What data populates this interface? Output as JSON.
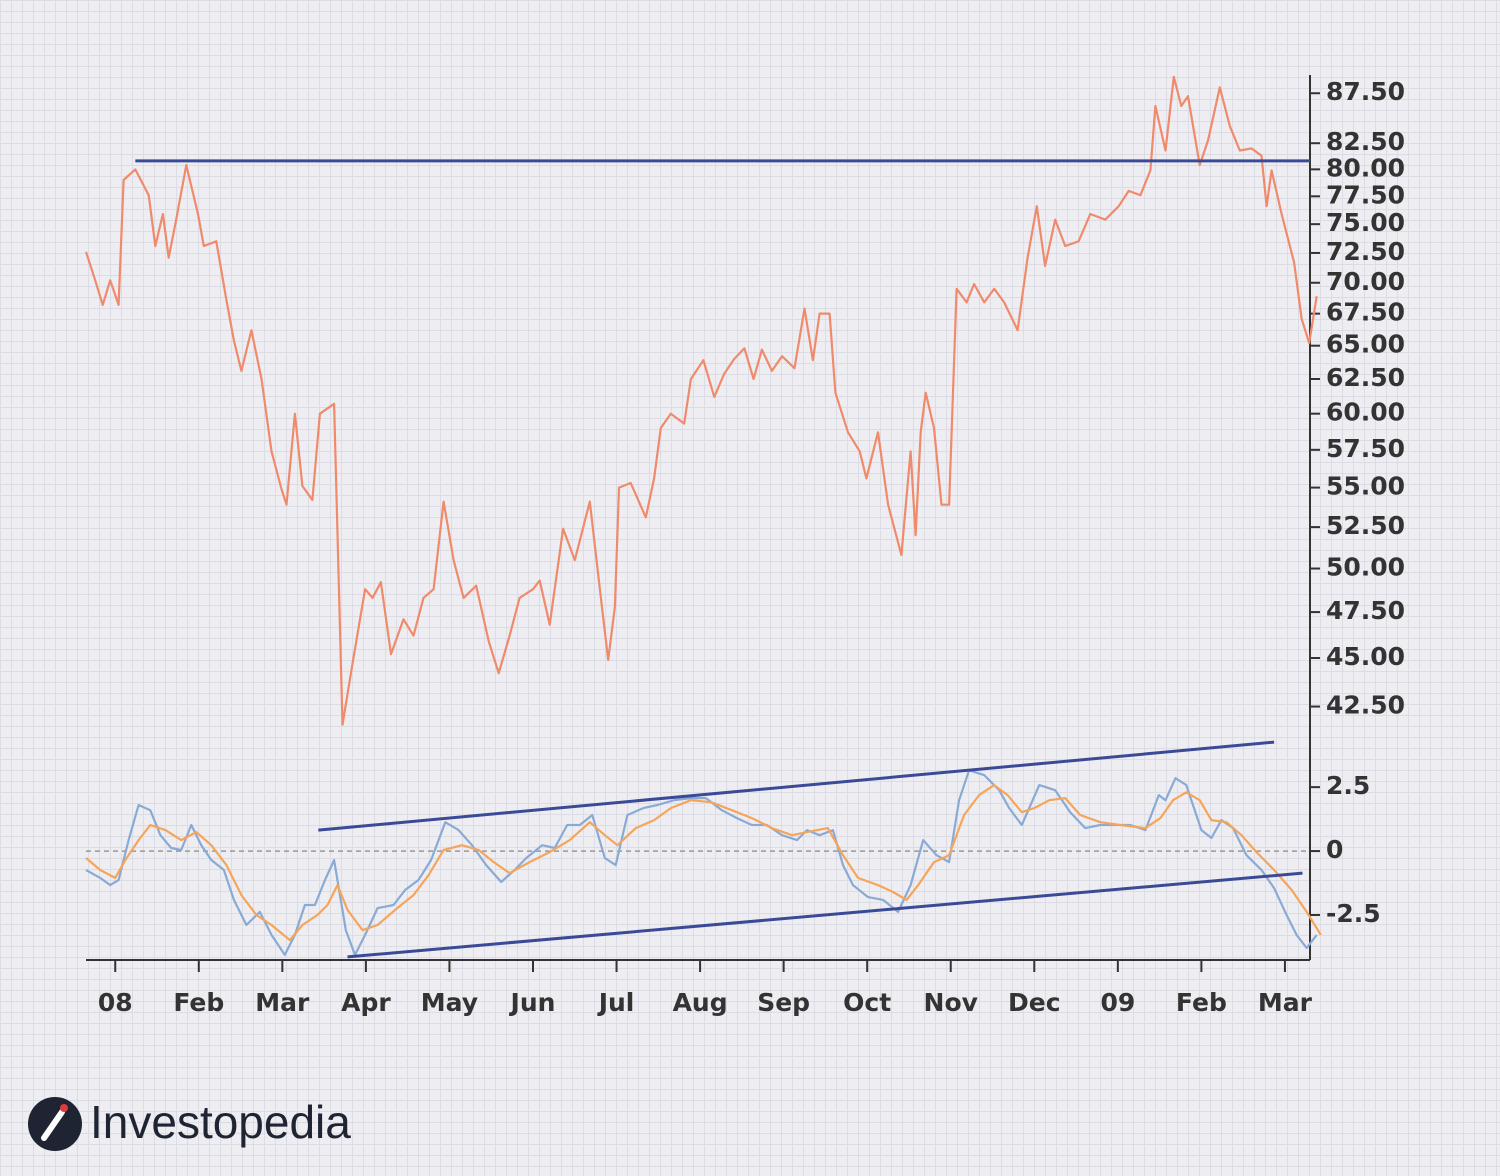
{
  "logo": "Investopedia",
  "chart_data": [
    {
      "type": "line",
      "log_scale": true,
      "xlim": [
        -0.35,
        14.3
      ],
      "ylim": [
        41.1,
        89.4
      ],
      "yticks": [
        {
          "value": 87.5,
          "label": "87.50"
        },
        {
          "value": 82.5,
          "label": "82.50"
        },
        {
          "value": 80,
          "label": "80.00"
        },
        {
          "value": 77.5,
          "label": "77.50"
        },
        {
          "value": 75,
          "label": "75.00"
        },
        {
          "value": 72.5,
          "label": "72.50"
        },
        {
          "value": 70,
          "label": "70.00"
        },
        {
          "value": 67.5,
          "label": "67.50"
        },
        {
          "value": 65,
          "label": "65.00"
        },
        {
          "value": 62.5,
          "label": "62.50"
        },
        {
          "value": 60,
          "label": "60.00"
        },
        {
          "value": 57.5,
          "label": "57.50"
        },
        {
          "value": 55,
          "label": "55.00"
        },
        {
          "value": 52.5,
          "label": "52.50"
        },
        {
          "value": 50,
          "label": "50.00"
        },
        {
          "value": 47.5,
          "label": "47.50"
        },
        {
          "value": 45,
          "label": "45.00"
        },
        {
          "value": 42.5,
          "label": "42.50"
        }
      ],
      "series": [
        {
          "color": "#f08a6c",
          "x": [
            -0.35,
            -0.24,
            -0.15,
            -0.06,
            0.04,
            0.1,
            0.24,
            0.4,
            0.48,
            0.57,
            0.64,
            0.73,
            0.85,
            0.99,
            1.06,
            1.21,
            1.33,
            1.42,
            1.51,
            1.63,
            1.75,
            1.87,
            1.99,
            2.05,
            2.15,
            2.24,
            2.36,
            2.45,
            2.62,
            2.72,
            2.84,
            2.99,
            3.08,
            3.18,
            3.3,
            3.45,
            3.57,
            3.69,
            3.81,
            3.93,
            4.05,
            4.17,
            4.32,
            4.47,
            4.59,
            4.72,
            4.84,
            5.0,
            5.08,
            5.2,
            5.36,
            5.5,
            5.68,
            5.82,
            5.9,
            5.98,
            6.03,
            6.17,
            6.35,
            6.45,
            6.53,
            6.65,
            6.81,
            6.89,
            7.04,
            7.17,
            7.29,
            7.41,
            7.53,
            7.64,
            7.74,
            7.86,
            7.98,
            8.13,
            8.25,
            8.35,
            8.43,
            8.55,
            8.62,
            8.77,
            8.91,
            8.99,
            9.13,
            9.25,
            9.41,
            9.52,
            9.58,
            9.64,
            9.7,
            9.8,
            9.89,
            9.98,
            10.07,
            10.19,
            10.28,
            10.4,
            10.52,
            10.64,
            10.8,
            10.92,
            11.03,
            11.13,
            11.25,
            11.37,
            11.53,
            11.67,
            11.85,
            12.01,
            12.13,
            12.27,
            12.39,
            12.45,
            12.57,
            12.67,
            12.76,
            12.84,
            12.98,
            13.08,
            13.22,
            13.34,
            13.46,
            13.6,
            13.72,
            13.78,
            13.84,
            13.96,
            14.11,
            14.2,
            14.29,
            14.38
          ],
          "values": [
            72.6,
            70.2,
            68.2,
            70.2,
            68.2,
            79,
            80,
            77.6,
            73.1,
            75.9,
            72.1,
            75.4,
            80.4,
            75.9,
            73.1,
            73.5,
            68.6,
            65.4,
            63.1,
            66.2,
            62.5,
            57.4,
            54.9,
            53.9,
            60,
            55.1,
            54.2,
            60,
            60.7,
            41.6,
            44.7,
            48.8,
            48.3,
            49.2,
            45.2,
            47.1,
            46.2,
            48.3,
            48.8,
            54.1,
            50.5,
            48.3,
            49,
            45.9,
            44.2,
            46.2,
            48.3,
            48.8,
            49.3,
            46.8,
            52.4,
            50.5,
            54.1,
            48,
            44.9,
            47.8,
            55,
            55.3,
            53.1,
            55.6,
            59,
            60,
            59.3,
            62.5,
            63.9,
            61.2,
            62.9,
            64,
            64.8,
            62.5,
            64.7,
            63.1,
            64.2,
            63.3,
            67.9,
            63.9,
            67.5,
            67.5,
            61.5,
            58.7,
            57.4,
            55.6,
            58.7,
            53.9,
            50.8,
            57.4,
            52,
            58.7,
            61.5,
            59,
            53.9,
            53.9,
            69.5,
            68.4,
            69.9,
            68.4,
            69.5,
            68.4,
            66.2,
            72.1,
            76.6,
            71.4,
            75.4,
            73.1,
            73.5,
            75.9,
            75.4,
            76.6,
            78,
            77.6,
            79.9,
            86.2,
            81.8,
            89.2,
            86.2,
            87.2,
            80.4,
            82.8,
            88.1,
            84.2,
            81.8,
            82,
            81.3,
            76.6,
            79.9,
            75.9,
            71.7,
            67.1,
            65.2,
            68.9
          ]
        }
      ],
      "trendlines": [
        {
          "color": "#3b4a96",
          "x": [
            0.24,
            14.3
          ],
          "values": [
            80.8,
            80.8
          ]
        }
      ]
    },
    {
      "type": "line",
      "xlim": [
        -0.35,
        14.3
      ],
      "ylim": [
        -4.26,
        4.5
      ],
      "yticks": [
        2.5,
        0,
        -2.5
      ],
      "zero_line": true,
      "xticks": [
        {
          "value": 0,
          "label": "08"
        },
        {
          "value": 1,
          "label": "Feb"
        },
        {
          "value": 2,
          "label": "Mar"
        },
        {
          "value": 3,
          "label": "Apr"
        },
        {
          "value": 4,
          "label": "May"
        },
        {
          "value": 5,
          "label": "Jun"
        },
        {
          "value": 6,
          "label": "Jul"
        },
        {
          "value": 7,
          "label": "Aug"
        },
        {
          "value": 8,
          "label": "Sep"
        },
        {
          "value": 9,
          "label": "Oct"
        },
        {
          "value": 10,
          "label": "Nov"
        },
        {
          "value": 11,
          "label": "Dec"
        },
        {
          "value": 12,
          "label": "09"
        },
        {
          "value": 13,
          "label": "Feb"
        },
        {
          "value": 14,
          "label": "Mar"
        }
      ],
      "series": [
        {
          "color": "#8aaad6",
          "x": [
            -0.35,
            -0.18,
            -0.06,
            0.04,
            0.16,
            0.28,
            0.42,
            0.54,
            0.67,
            0.79,
            0.91,
            1.03,
            1.15,
            1.3,
            1.42,
            1.57,
            1.73,
            1.87,
            2.03,
            2.15,
            2.27,
            2.39,
            2.51,
            2.62,
            2.76,
            2.87,
            2.99,
            3.14,
            3.33,
            3.47,
            3.63,
            3.78,
            3.95,
            4.11,
            4.27,
            4.44,
            4.62,
            4.78,
            4.92,
            5.11,
            5.26,
            5.41,
            5.56,
            5.71,
            5.86,
            5.99,
            6.13,
            6.32,
            6.49,
            6.69,
            6.89,
            7.07,
            7.26,
            7.44,
            7.62,
            7.8,
            7.98,
            8.16,
            8.28,
            8.43,
            8.59,
            8.71,
            8.83,
            9.01,
            9.19,
            9.37,
            9.52,
            9.67,
            9.83,
            9.98,
            10.1,
            10.22,
            10.4,
            10.58,
            10.7,
            10.85,
            11.06,
            11.25,
            11.43,
            11.61,
            11.79,
            11.97,
            12.15,
            12.33,
            12.49,
            12.57,
            12.69,
            12.82,
            13.0,
            13.12,
            13.24,
            13.38,
            13.54,
            13.72,
            13.87,
            14.02,
            14.14,
            14.26,
            14.38
          ],
          "values": [
            -0.74,
            -1.05,
            -1.33,
            -1.13,
            0.43,
            1.8,
            1.6,
            0.62,
            0.12,
            0.04,
            1.02,
            0.23,
            -0.35,
            -0.74,
            -1.91,
            -2.89,
            -2.38,
            -3.28,
            -4.06,
            -3.28,
            -2.11,
            -2.11,
            -1.13,
            -0.35,
            -3.09,
            -4.06,
            -3.28,
            -2.23,
            -2.11,
            -1.52,
            -1.13,
            -0.35,
            1.13,
            0.82,
            0.23,
            -0.55,
            -1.21,
            -0.74,
            -0.27,
            0.23,
            0.12,
            1.02,
            1.02,
            1.41,
            -0.27,
            -0.55,
            1.41,
            1.68,
            1.8,
            1.99,
            2.07,
            2.07,
            1.6,
            1.29,
            1.02,
            1.02,
            0.62,
            0.43,
            0.82,
            0.62,
            0.82,
            -0.55,
            -1.33,
            -1.8,
            -1.91,
            -2.38,
            -1.33,
            0.43,
            -0.16,
            -0.43,
            1.99,
            3.16,
            2.97,
            2.38,
            1.68,
            1.02,
            2.58,
            2.38,
            1.52,
            0.9,
            1.02,
            1.02,
            1.02,
            0.82,
            2.19,
            1.99,
            2.85,
            2.58,
            0.82,
            0.51,
            1.21,
            0.9,
            -0.16,
            -0.74,
            -1.45,
            -2.5,
            -3.28,
            -3.79,
            -3.28
          ]
        },
        {
          "color": "#f5a55a",
          "x": [
            -0.35,
            -0.18,
            0,
            0.12,
            0.28,
            0.42,
            0.6,
            0.79,
            0.97,
            1.15,
            1.33,
            1.51,
            1.69,
            1.87,
            2.09,
            2.24,
            2.42,
            2.54,
            2.66,
            2.78,
            2.96,
            3.14,
            3.35,
            3.57,
            3.75,
            3.93,
            4.15,
            4.35,
            4.53,
            4.72,
            4.96,
            5.2,
            5.44,
            5.68,
            5.86,
            6.01,
            6.23,
            6.45,
            6.65,
            6.89,
            7.13,
            7.38,
            7.62,
            7.86,
            8.1,
            8.28,
            8.53,
            8.71,
            8.89,
            9.13,
            9.31,
            9.47,
            9.61,
            9.8,
            9.98,
            10.16,
            10.34,
            10.52,
            10.68,
            10.85,
            11.0,
            11.18,
            11.37,
            11.55,
            11.79,
            12.03,
            12.33,
            12.51,
            12.66,
            12.82,
            12.98,
            13.12,
            13.3,
            13.48,
            13.66,
            13.87,
            14.08,
            14.26,
            14.43
          ],
          "values": [
            -0.27,
            -0.74,
            -1.05,
            -0.35,
            0.43,
            1.02,
            0.82,
            0.43,
            0.74,
            0.23,
            -0.55,
            -1.72,
            -2.5,
            -2.89,
            -3.48,
            -2.89,
            -2.5,
            -2.11,
            -1.33,
            -2.3,
            -3.09,
            -2.89,
            -2.3,
            -1.72,
            -0.94,
            0.04,
            0.23,
            0.04,
            -0.43,
            -0.86,
            -0.43,
            -0.04,
            0.43,
            1.13,
            0.62,
            0.23,
            0.9,
            1.21,
            1.68,
            1.99,
            1.91,
            1.6,
            1.29,
            0.9,
            0.62,
            0.74,
            0.9,
            -0.16,
            -1.05,
            -1.33,
            -1.6,
            -1.91,
            -1.33,
            -0.43,
            -0.16,
            1.41,
            2.19,
            2.58,
            2.19,
            1.52,
            1.68,
            1.99,
            2.07,
            1.41,
            1.13,
            1.02,
            0.9,
            1.29,
            1.99,
            2.3,
            1.99,
            1.21,
            1.13,
            0.62,
            -0.04,
            -0.74,
            -1.52,
            -2.38,
            -3.28
          ]
        }
      ],
      "trendlines": [
        {
          "color": "#3b4a96",
          "x": [
            2.43,
            13.87
          ],
          "values": [
            0.82,
            4.26
          ]
        },
        {
          "color": "#3b4a96",
          "x": [
            2.78,
            14.21
          ],
          "values": [
            -4.14,
            -0.86
          ]
        }
      ]
    }
  ]
}
